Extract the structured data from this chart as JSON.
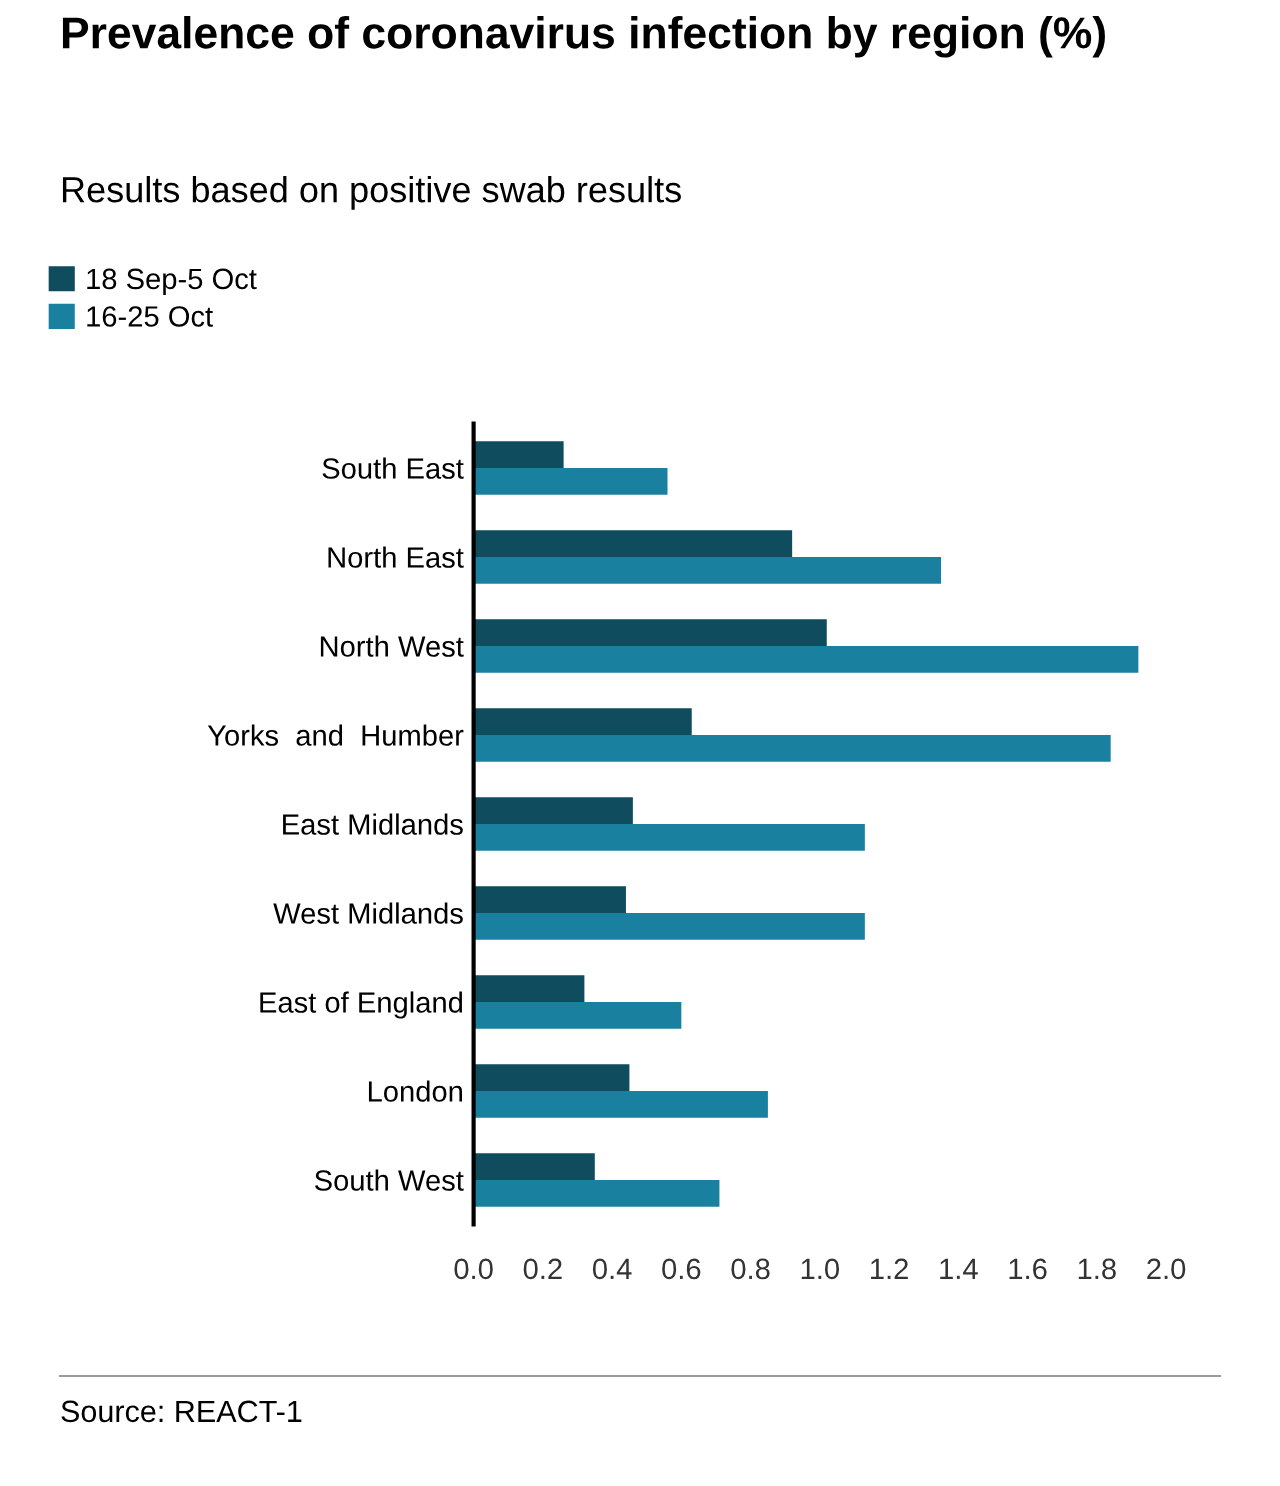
{
  "chart_data": {
    "type": "bar",
    "orientation": "horizontal",
    "title": "Prevalence of coronavirus infection by region (%)",
    "subtitle": "Results based on positive swab results",
    "categories": [
      "South East",
      "North East",
      "North West",
      "Yorks  and  Humber",
      "East Midlands",
      "West Midlands",
      "East of England",
      "London",
      "South West"
    ],
    "series": [
      {
        "name": "18 Sep-5 Oct",
        "color": "#0e4c5e",
        "values": [
          0.26,
          0.92,
          1.02,
          0.63,
          0.46,
          0.44,
          0.32,
          0.45,
          0.35
        ]
      },
      {
        "name": "16-25 Oct",
        "color": "#1a809f",
        "values": [
          0.56,
          1.35,
          1.92,
          1.84,
          1.13,
          1.13,
          0.6,
          0.85,
          0.71
        ]
      }
    ],
    "xlim": [
      0,
      2.0
    ],
    "xticks": [
      {
        "value": 0,
        "label": "0.0"
      },
      0.2,
      0.4,
      0.6,
      0.8,
      {
        "value": 1,
        "label": "1.0"
      },
      1.2,
      1.4,
      1.6,
      1.8,
      {
        "value": 2,
        "label": "2.0"
      }
    ],
    "grid": false,
    "legend": "top left",
    "annotations": [
      "Source: REACT-1"
    ]
  }
}
